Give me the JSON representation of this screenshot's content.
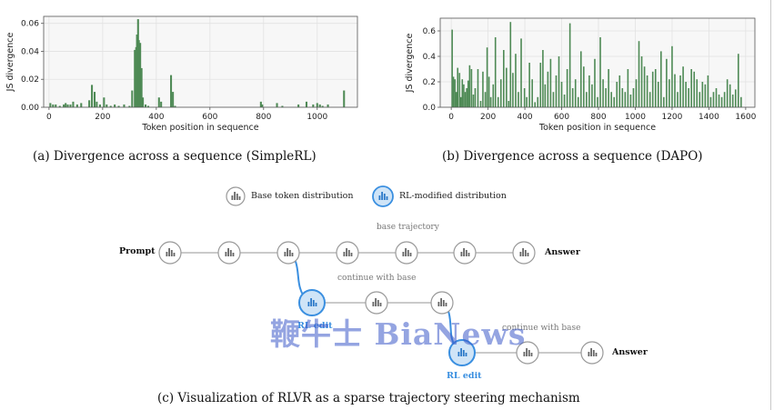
{
  "charts": {
    "a": {
      "type": "bar",
      "xlabel": "Token position in sequence",
      "ylabel": "JS divergence",
      "xlim": [
        -20,
        1150
      ],
      "ylim": [
        0,
        0.065
      ],
      "xticks": [
        0,
        200,
        400,
        600,
        800,
        1000
      ],
      "yticks": [
        0.0,
        0.02,
        0.04,
        0.06
      ],
      "ytick_labels": [
        "0.00",
        "0.02",
        "0.04",
        "0.06"
      ],
      "grid": true,
      "color": "#4e8a55",
      "x": [
        5,
        15,
        25,
        40,
        55,
        62,
        70,
        80,
        90,
        105,
        120,
        150,
        160,
        170,
        178,
        190,
        205,
        215,
        230,
        245,
        260,
        280,
        300,
        310,
        320,
        325,
        328,
        332,
        335,
        340,
        345,
        350,
        360,
        370,
        410,
        418,
        455,
        462,
        470,
        790,
        795,
        850,
        870,
        930,
        960,
        985,
        1000,
        1010,
        1020,
        1040,
        1100
      ],
      "values": [
        0.003,
        0.002,
        0.002,
        0.001,
        0.002,
        0.003,
        0.002,
        0.002,
        0.004,
        0.002,
        0.003,
        0.005,
        0.016,
        0.011,
        0.004,
        0.002,
        0.007,
        0.002,
        0.001,
        0.002,
        0.001,
        0.002,
        0.001,
        0.012,
        0.041,
        0.043,
        0.052,
        0.063,
        0.048,
        0.046,
        0.028,
        0.007,
        0.002,
        0.001,
        0.007,
        0.004,
        0.023,
        0.011,
        0.001,
        0.004,
        0.002,
        0.003,
        0.001,
        0.002,
        0.004,
        0.002,
        0.003,
        0.002,
        0.001,
        0.002,
        0.012
      ]
    },
    "b": {
      "type": "bar",
      "xlabel": "Token position in sequence",
      "ylabel": "JS divergence",
      "xlim": [
        -60,
        1650
      ],
      "ylim": [
        0,
        0.7
      ],
      "xticks": [
        0,
        200,
        400,
        600,
        800,
        1000,
        1200,
        1400,
        1600
      ],
      "yticks": [
        0,
        0.2,
        0.4,
        0.6
      ],
      "ytick_labels": [
        "0.0",
        "0.2",
        "0.4",
        "0.6"
      ],
      "grid": true,
      "color": "#4e8a55",
      "x": [
        5,
        12,
        20,
        28,
        35,
        45,
        52,
        60,
        68,
        76,
        84,
        92,
        100,
        110,
        120,
        130,
        145,
        160,
        172,
        185,
        195,
        205,
        215,
        228,
        240,
        255,
        270,
        285,
        300,
        312,
        322,
        335,
        350,
        365,
        380,
        398,
        410,
        425,
        440,
        455,
        470,
        485,
        498,
        510,
        525,
        540,
        555,
        570,
        585,
        600,
        615,
        630,
        645,
        660,
        675,
        690,
        705,
        720,
        735,
        750,
        765,
        780,
        795,
        810,
        825,
        840,
        855,
        870,
        885,
        900,
        915,
        930,
        945,
        960,
        975,
        990,
        1005,
        1020,
        1035,
        1050,
        1065,
        1080,
        1095,
        1110,
        1125,
        1140,
        1155,
        1170,
        1185,
        1200,
        1215,
        1230,
        1245,
        1260,
        1275,
        1290,
        1305,
        1320,
        1335,
        1350,
        1365,
        1380,
        1395,
        1410,
        1425,
        1440,
        1455,
        1470,
        1485,
        1500,
        1515,
        1530,
        1545,
        1560,
        1575
      ],
      "values": [
        0.61,
        0.24,
        0.22,
        0.12,
        0.31,
        0.27,
        0.08,
        0.22,
        0.18,
        0.12,
        0.15,
        0.21,
        0.33,
        0.3,
        0.1,
        0.15,
        0.3,
        0.05,
        0.28,
        0.12,
        0.47,
        0.24,
        0.08,
        0.18,
        0.55,
        0.08,
        0.22,
        0.45,
        0.31,
        0.05,
        0.67,
        0.27,
        0.42,
        0.12,
        0.54,
        0.15,
        0.08,
        0.35,
        0.22,
        0.04,
        0.08,
        0.35,
        0.45,
        0.18,
        0.28,
        0.38,
        0.12,
        0.25,
        0.4,
        0.2,
        0.1,
        0.3,
        0.66,
        0.15,
        0.22,
        0.08,
        0.44,
        0.32,
        0.12,
        0.25,
        0.18,
        0.38,
        0.08,
        0.55,
        0.22,
        0.15,
        0.3,
        0.12,
        0.08,
        0.2,
        0.25,
        0.15,
        0.12,
        0.3,
        0.1,
        0.15,
        0.22,
        0.52,
        0.4,
        0.32,
        0.25,
        0.12,
        0.28,
        0.3,
        0.2,
        0.44,
        0.08,
        0.38,
        0.22,
        0.48,
        0.26,
        0.12,
        0.25,
        0.32,
        0.2,
        0.15,
        0.3,
        0.28,
        0.22,
        0.12,
        0.2,
        0.18,
        0.25,
        0.08,
        0.12,
        0.15,
        0.1,
        0.08,
        0.12,
        0.22,
        0.18,
        0.1,
        0.14,
        0.42,
        0.08
      ]
    }
  },
  "captions": {
    "a": "(a) Divergence across a sequence (SimpleRL)",
    "b": "(b) Divergence across a sequence (DAPO)",
    "c": "(c) Visualization of RLVR as a sparse trajectory steering mechanism"
  },
  "legend": {
    "base": "Base token distribution",
    "rl": "RL-modified distribution"
  },
  "diagram": {
    "prompt": "Prompt",
    "answer": "Answer",
    "base_trajectory": "base trajectory",
    "continue_with_base": "continue with base",
    "rl_edit": "RL edit",
    "colors": {
      "base": "#999999",
      "rl": "#3a8fe0",
      "rl_fill": "#cfe4f7"
    }
  },
  "watermark": "鞭牛士 BiaNews"
}
